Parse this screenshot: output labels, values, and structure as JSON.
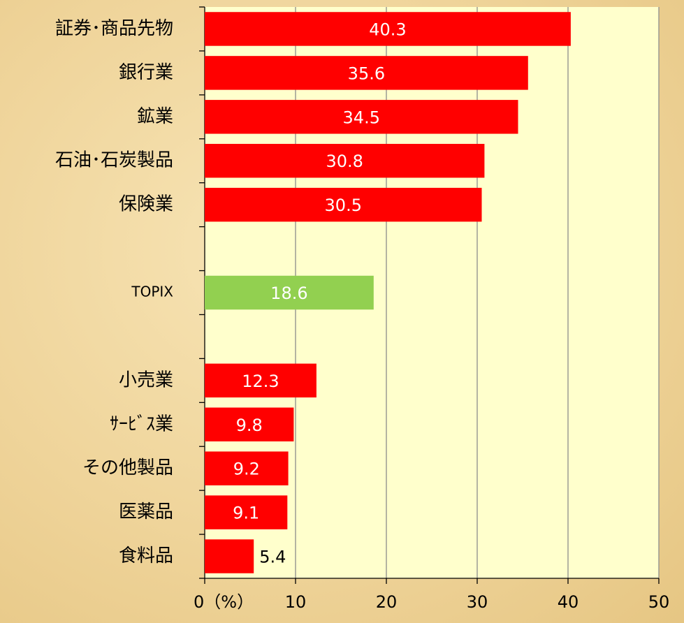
{
  "chart_data": {
    "type": "barh",
    "categories": [
      "証券･商品先物",
      "銀行業",
      "鉱業",
      "石油･石炭製品",
      "保険業",
      null,
      "TOPIX",
      null,
      "小売業",
      "ｻｰﾋﾞｽ業",
      "その他製品",
      "医薬品",
      "食料品"
    ],
    "values": [
      40.3,
      35.6,
      34.5,
      30.8,
      30.5,
      null,
      18.6,
      null,
      12.3,
      9.8,
      9.2,
      9.1,
      5.4
    ],
    "colors": [
      "#ff0000",
      "#ff0000",
      "#ff0000",
      "#ff0000",
      "#ff0000",
      null,
      "#92d050",
      null,
      "#ff0000",
      "#ff0000",
      "#ff0000",
      "#ff0000",
      "#ff0000"
    ],
    "xlim": [
      0,
      50
    ],
    "xticks": [
      {
        "value": 0,
        "label": "0（%）"
      },
      10,
      20,
      30,
      40,
      50
    ],
    "grid": true
  }
}
